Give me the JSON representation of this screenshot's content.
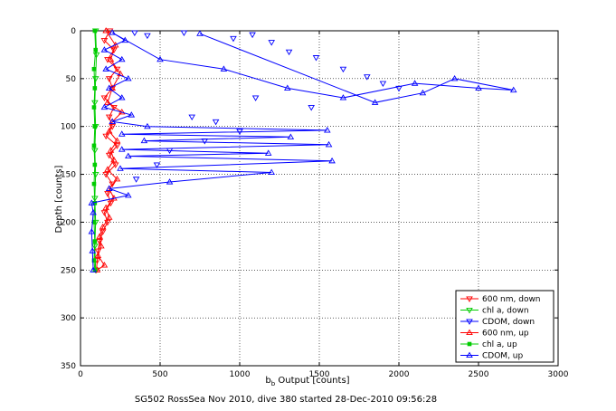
{
  "chart_data": {
    "type": "scatter",
    "title": "",
    "xlabel_main": "b",
    "xlabel_sub": "b",
    "xlabel_rest": " Output [counts]",
    "ylabel": "Depth [counts]",
    "caption": "SG502 RossSea Nov 2010, dive 380 started 28-Dec-2010 09:56:28",
    "xlim": [
      0,
      3000
    ],
    "ylim": [
      350,
      0
    ],
    "y_reversed": true,
    "grid": true,
    "legend_placement": "bottom-right",
    "xticks": [
      0,
      500,
      1000,
      1500,
      2000,
      2500,
      3000
    ],
    "yticks": [
      0,
      50,
      100,
      150,
      200,
      250,
      300,
      350
    ],
    "series": [
      {
        "name": "600 nm, down",
        "color": "#ff0000",
        "marker": "triangle-down",
        "line": true,
        "points": [
          [
            185,
            0
          ],
          [
            150,
            10
          ],
          [
            210,
            20
          ],
          [
            170,
            30
          ],
          [
            230,
            40
          ],
          [
            180,
            50
          ],
          [
            200,
            60
          ],
          [
            150,
            70
          ],
          [
            210,
            80
          ],
          [
            180,
            90
          ],
          [
            200,
            100
          ],
          [
            160,
            110
          ],
          [
            230,
            120
          ],
          [
            180,
            130
          ],
          [
            220,
            140
          ],
          [
            160,
            150
          ],
          [
            200,
            160
          ],
          [
            170,
            170
          ],
          [
            190,
            180
          ],
          [
            150,
            190
          ],
          [
            170,
            200
          ],
          [
            140,
            210
          ],
          [
            120,
            220
          ],
          [
            110,
            230
          ],
          [
            105,
            240
          ],
          [
            100,
            250
          ]
        ]
      },
      {
        "name": "chl a, down",
        "color": "#00cc00",
        "marker": "triangle-down",
        "line": true,
        "points": [
          [
            95,
            0
          ],
          [
            100,
            25
          ],
          [
            95,
            50
          ],
          [
            90,
            75
          ],
          [
            95,
            100
          ],
          [
            90,
            125
          ],
          [
            95,
            150
          ],
          [
            90,
            175
          ],
          [
            95,
            200
          ],
          [
            90,
            225
          ],
          [
            95,
            250
          ]
        ]
      },
      {
        "name": "CDOM, down",
        "color": "#0000ff",
        "marker": "triangle-down",
        "line": false,
        "points": [
          [
            340,
            2
          ],
          [
            420,
            5
          ],
          [
            650,
            2
          ],
          [
            960,
            8
          ],
          [
            1080,
            4
          ],
          [
            1200,
            12
          ],
          [
            1310,
            22
          ],
          [
            1480,
            28
          ],
          [
            1650,
            40
          ],
          [
            1800,
            48
          ],
          [
            1900,
            55
          ],
          [
            2000,
            60
          ],
          [
            1100,
            70
          ],
          [
            1450,
            80
          ],
          [
            700,
            90
          ],
          [
            850,
            95
          ],
          [
            1000,
            105
          ],
          [
            780,
            115
          ],
          [
            560,
            125
          ],
          [
            480,
            140
          ],
          [
            350,
            155
          ]
        ]
      },
      {
        "name": "600 nm, up",
        "color": "#ff0000",
        "marker": "triangle-up",
        "line": true,
        "points": [
          [
            160,
            0
          ],
          [
            220,
            15
          ],
          [
            190,
            30
          ],
          [
            250,
            45
          ],
          [
            200,
            60
          ],
          [
            170,
            75
          ],
          [
            260,
            85
          ],
          [
            200,
            95
          ],
          [
            180,
            105
          ],
          [
            230,
            115
          ],
          [
            190,
            125
          ],
          [
            210,
            135
          ],
          [
            170,
            145
          ],
          [
            230,
            155
          ],
          [
            180,
            165
          ],
          [
            210,
            175
          ],
          [
            160,
            185
          ],
          [
            180,
            195
          ],
          [
            140,
            205
          ],
          [
            120,
            215
          ],
          [
            130,
            225
          ],
          [
            110,
            235
          ],
          [
            150,
            245
          ],
          [
            105,
            250
          ]
        ]
      },
      {
        "name": "chl a, up",
        "color": "#00cc00",
        "marker": "square",
        "line": true,
        "points": [
          [
            90,
            0
          ],
          [
            95,
            20
          ],
          [
            85,
            40
          ],
          [
            90,
            60
          ],
          [
            85,
            80
          ],
          [
            90,
            100
          ],
          [
            85,
            120
          ],
          [
            90,
            140
          ],
          [
            85,
            160
          ],
          [
            90,
            180
          ],
          [
            85,
            200
          ],
          [
            90,
            220
          ],
          [
            85,
            240
          ],
          [
            90,
            250
          ]
        ]
      },
      {
        "name": "CDOM, up",
        "color": "#0000ff",
        "marker": "triangle-up",
        "line": true,
        "points": [
          [
            80,
            250
          ],
          [
            75,
            230
          ],
          [
            70,
            210
          ],
          [
            80,
            190
          ],
          [
            70,
            180
          ],
          [
            300,
            172
          ],
          [
            180,
            165
          ],
          [
            560,
            158
          ],
          [
            1200,
            148
          ],
          [
            250,
            144
          ],
          [
            1580,
            136
          ],
          [
            300,
            131
          ],
          [
            1180,
            128
          ],
          [
            260,
            124
          ],
          [
            1560,
            119
          ],
          [
            400,
            115
          ],
          [
            1320,
            111
          ],
          [
            260,
            108
          ],
          [
            1550,
            104
          ],
          [
            420,
            100
          ],
          [
            200,
            95
          ],
          [
            320,
            88
          ],
          [
            150,
            80
          ],
          [
            260,
            70
          ],
          [
            180,
            60
          ],
          [
            300,
            50
          ],
          [
            160,
            40
          ],
          [
            260,
            30
          ],
          [
            150,
            20
          ],
          [
            280,
            10
          ],
          [
            200,
            2
          ],
          [
            500,
            30
          ],
          [
            900,
            40
          ],
          [
            1300,
            60
          ],
          [
            1650,
            70
          ],
          [
            2100,
            55
          ],
          [
            2500,
            60
          ],
          [
            2720,
            62
          ],
          [
            2350,
            50
          ],
          [
            2150,
            65
          ],
          [
            1850,
            75
          ],
          [
            750,
            3
          ]
        ]
      }
    ]
  }
}
